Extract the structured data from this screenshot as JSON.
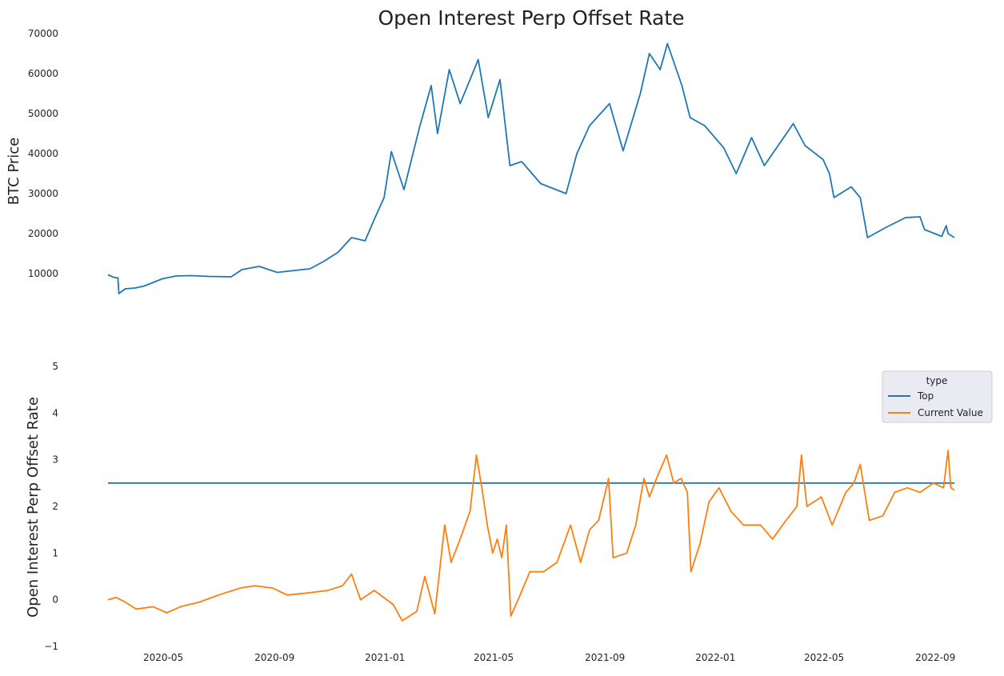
{
  "title": "Open Interest Perp Offset Rate",
  "colors": {
    "price": "#1f77b4",
    "top": "#1f77b4",
    "current": "#ff7f0e",
    "legend_bg": "#eaeaf2"
  },
  "chart_data": [
    {
      "type": "line",
      "ylabel": "BTC  Price",
      "ylim": [
        4000,
        70000
      ],
      "yticks": [
        10000,
        20000,
        30000,
        40000,
        50000,
        60000,
        70000
      ],
      "grid": false,
      "series": [
        {
          "color": "#1f77b4",
          "points": [
            [
              "2020-03-01",
              9700
            ],
            [
              "2020-03-07",
              9100
            ],
            [
              "2020-03-12",
              8900
            ],
            [
              "2020-03-13",
              5000
            ],
            [
              "2020-03-20",
              6200
            ],
            [
              "2020-03-31",
              6400
            ],
            [
              "2020-04-10",
              6900
            ],
            [
              "2020-04-30",
              8700
            ],
            [
              "2020-05-15",
              9400
            ],
            [
              "2020-06-01",
              9500
            ],
            [
              "2020-06-20",
              9300
            ],
            [
              "2020-07-15",
              9200
            ],
            [
              "2020-07-27",
              11000
            ],
            [
              "2020-08-15",
              11800
            ],
            [
              "2020-09-04",
              10300
            ],
            [
              "2020-09-20",
              10700
            ],
            [
              "2020-10-10",
              11200
            ],
            [
              "2020-10-25",
              13000
            ],
            [
              "2020-11-10",
              15300
            ],
            [
              "2020-11-25",
              19000
            ],
            [
              "2020-12-10",
              18200
            ],
            [
              "2020-12-20",
              23500
            ],
            [
              "2020-12-31",
              29000
            ],
            [
              "2021-01-08",
              40500
            ],
            [
              "2021-01-22",
              31000
            ],
            [
              "2021-02-08",
              46500
            ],
            [
              "2021-02-21",
              57000
            ],
            [
              "2021-02-28",
              45000
            ],
            [
              "2021-03-13",
              61000
            ],
            [
              "2021-03-25",
              52500
            ],
            [
              "2021-04-14",
              63500
            ],
            [
              "2021-04-25",
              49000
            ],
            [
              "2021-05-08",
              58500
            ],
            [
              "2021-05-19",
              37000
            ],
            [
              "2021-06-01",
              38000
            ],
            [
              "2021-06-22",
              32500
            ],
            [
              "2021-07-20",
              30000
            ],
            [
              "2021-08-01",
              40000
            ],
            [
              "2021-08-15",
              47000
            ],
            [
              "2021-09-06",
              52500
            ],
            [
              "2021-09-21",
              40700
            ],
            [
              "2021-10-10",
              55000
            ],
            [
              "2021-10-20",
              65000
            ],
            [
              "2021-11-01",
              61000
            ],
            [
              "2021-11-09",
              67500
            ],
            [
              "2021-11-25",
              57000
            ],
            [
              "2021-12-04",
              49000
            ],
            [
              "2021-12-20",
              47000
            ],
            [
              "2022-01-10",
              41500
            ],
            [
              "2022-01-24",
              35000
            ],
            [
              "2022-02-10",
              44000
            ],
            [
              "2022-02-24",
              37000
            ],
            [
              "2022-03-28",
              47500
            ],
            [
              "2022-04-10",
              42000
            ],
            [
              "2022-04-30",
              38500
            ],
            [
              "2022-05-07",
              35000
            ],
            [
              "2022-05-12",
              29000
            ],
            [
              "2022-05-31",
              31700
            ],
            [
              "2022-06-10",
              29000
            ],
            [
              "2022-06-18",
              19000
            ],
            [
              "2022-07-08",
              21500
            ],
            [
              "2022-07-30",
              24000
            ],
            [
              "2022-08-15",
              24200
            ],
            [
              "2022-08-20",
              21000
            ],
            [
              "2022-09-08",
              19300
            ],
            [
              "2022-09-13",
              22000
            ],
            [
              "2022-09-15",
              20000
            ],
            [
              "2022-09-22",
              19000
            ]
          ]
        }
      ]
    },
    {
      "type": "line",
      "ylabel": "Open Interest Perp Offset Rate",
      "ylim": [
        -1,
        5
      ],
      "yticks": [
        -1,
        0,
        1,
        2,
        3,
        4,
        5
      ],
      "xticks": [
        "2020-05",
        "2020-09",
        "2021-01",
        "2021-05",
        "2021-09",
        "2022-01",
        "2022-05",
        "2022-09"
      ],
      "grid": false,
      "legend": {
        "title": "type",
        "placement": "right",
        "entries": [
          "Top",
          "Current Value"
        ]
      },
      "series": [
        {
          "name": "Top",
          "color": "#1f77b4",
          "points": [
            [
              "2020-03-01",
              2.5
            ],
            [
              "2022-09-22",
              2.5
            ]
          ]
        },
        {
          "name": "Current Value",
          "color": "#ff7f0e",
          "points": [
            [
              "2020-03-01",
              0.0
            ],
            [
              "2020-03-10",
              0.05
            ],
            [
              "2020-03-20",
              -0.05
            ],
            [
              "2020-04-01",
              -0.2
            ],
            [
              "2020-04-20",
              -0.15
            ],
            [
              "2020-05-05",
              -0.28
            ],
            [
              "2020-05-20",
              -0.15
            ],
            [
              "2020-06-10",
              -0.05
            ],
            [
              "2020-07-01",
              0.1
            ],
            [
              "2020-07-25",
              0.25
            ],
            [
              "2020-08-10",
              0.3
            ],
            [
              "2020-08-30",
              0.25
            ],
            [
              "2020-09-15",
              0.1
            ],
            [
              "2020-10-10",
              0.15
            ],
            [
              "2020-10-30",
              0.2
            ],
            [
              "2020-11-15",
              0.3
            ],
            [
              "2020-11-25",
              0.55
            ],
            [
              "2020-12-05",
              0.0
            ],
            [
              "2020-12-20",
              0.2
            ],
            [
              "2021-01-10",
              -0.1
            ],
            [
              "2021-01-20",
              -0.45
            ],
            [
              "2021-02-05",
              -0.25
            ],
            [
              "2021-02-14",
              0.5
            ],
            [
              "2021-02-25",
              -0.3
            ],
            [
              "2021-03-08",
              1.6
            ],
            [
              "2021-03-15",
              0.8
            ],
            [
              "2021-03-25",
              1.3
            ],
            [
              "2021-04-05",
              1.9
            ],
            [
              "2021-04-12",
              3.1
            ],
            [
              "2021-04-18",
              2.4
            ],
            [
              "2021-04-24",
              1.6
            ],
            [
              "2021-04-30",
              1.0
            ],
            [
              "2021-05-05",
              1.3
            ],
            [
              "2021-05-10",
              0.9
            ],
            [
              "2021-05-15",
              1.6
            ],
            [
              "2021-05-20",
              -0.35
            ],
            [
              "2021-05-28",
              0.0
            ],
            [
              "2021-06-10",
              0.6
            ],
            [
              "2021-06-25",
              0.6
            ],
            [
              "2021-07-10",
              0.8
            ],
            [
              "2021-07-25",
              1.6
            ],
            [
              "2021-08-05",
              0.8
            ],
            [
              "2021-08-15",
              1.5
            ],
            [
              "2021-08-25",
              1.7
            ],
            [
              "2021-09-05",
              2.6
            ],
            [
              "2021-09-10",
              0.9
            ],
            [
              "2021-09-25",
              1.0
            ],
            [
              "2021-10-05",
              1.6
            ],
            [
              "2021-10-14",
              2.6
            ],
            [
              "2021-10-20",
              2.2
            ],
            [
              "2021-10-28",
              2.6
            ],
            [
              "2021-11-08",
              3.1
            ],
            [
              "2021-11-16",
              2.5
            ],
            [
              "2021-11-24",
              2.6
            ],
            [
              "2021-12-01",
              2.3
            ],
            [
              "2021-12-05",
              0.6
            ],
            [
              "2021-12-15",
              1.2
            ],
            [
              "2021-12-25",
              2.1
            ],
            [
              "2022-01-05",
              2.4
            ],
            [
              "2022-01-18",
              1.9
            ],
            [
              "2022-02-01",
              1.6
            ],
            [
              "2022-02-20",
              1.6
            ],
            [
              "2022-03-05",
              1.3
            ],
            [
              "2022-03-20",
              1.7
            ],
            [
              "2022-04-01",
              2.0
            ],
            [
              "2022-04-06",
              3.1
            ],
            [
              "2022-04-12",
              2.0
            ],
            [
              "2022-04-28",
              2.2
            ],
            [
              "2022-05-10",
              1.6
            ],
            [
              "2022-05-25",
              2.3
            ],
            [
              "2022-06-03",
              2.5
            ],
            [
              "2022-06-10",
              2.9
            ],
            [
              "2022-06-20",
              1.7
            ],
            [
              "2022-07-05",
              1.8
            ],
            [
              "2022-07-18",
              2.3
            ],
            [
              "2022-08-01",
              2.4
            ],
            [
              "2022-08-15",
              2.3
            ],
            [
              "2022-08-30",
              2.5
            ],
            [
              "2022-09-10",
              2.4
            ],
            [
              "2022-09-15",
              3.2
            ],
            [
              "2022-09-18",
              2.4
            ],
            [
              "2022-09-22",
              2.35
            ]
          ]
        }
      ]
    }
  ]
}
